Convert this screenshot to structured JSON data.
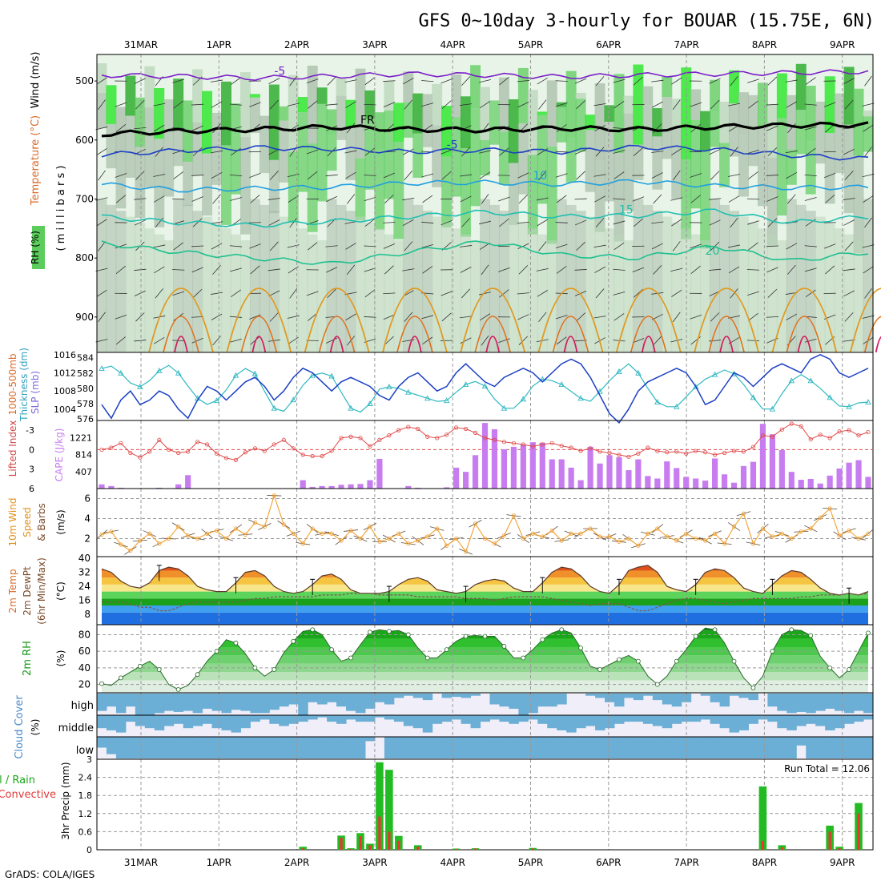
{
  "header": {
    "title": "GFS 0~10day 3-hourly for BOUAR (15.75E, 6N)",
    "footer": "GrADS: COLA/IGES"
  },
  "colors": {
    "rh_light": "#e8f4e8",
    "rh_mid": "#b9d6b9",
    "rh_gray": "#a8bca8",
    "rh_green": "#5ccc5c",
    "rh_bright": "#19e619",
    "rh_dark": "#1aa61a",
    "temp_purple": "#7a1fc8",
    "temp_blue": "#1f4fd0",
    "temp_sky": "#1f9fe0",
    "temp_teal": "#1fbfb0",
    "temp_green": "#1fc090",
    "temp_orange": "#e09a20",
    "temp_red": "#d01f60",
    "freezing": "#000000",
    "slp_line": "#1a3fc4",
    "thickness_line": "#30b8c0",
    "cape_bar": "#c77cf0",
    "li_line": "#e04a4a",
    "wind_line": "#f0a030",
    "cloud_fill": "#6baed6",
    "cloud_bg": "#f0eef8",
    "precip_total": "#22bb22",
    "precip_conv": "#ee3333"
  },
  "time_axis": {
    "labels": [
      "31MAR",
      "1APR",
      "2APR",
      "3APR",
      "4APR",
      "5APR",
      "6APR",
      "7APR",
      "8APR",
      "9APR"
    ],
    "first_label_index": 2,
    "steps_per_day": 8,
    "total_steps": 81
  },
  "panels": {
    "upper": {
      "label_rh": "RH (%)",
      "label_temp": "Temperature (°C)",
      "label_wind": "Wind (m/s)",
      "label_units": "( m i l l i b a r s )",
      "ylim": [
        960,
        455
      ],
      "yticks": [
        500,
        600,
        700,
        800,
        900
      ]
    },
    "slp": {
      "label_thick": "Thickness (dm)",
      "label_thick_top": "1000-500mb",
      "label_slp": "SLP (mb)",
      "left_ticks": [
        "584",
        "582",
        "580",
        "578",
        "576"
      ],
      "right_ticks": [
        "1016",
        "1012",
        "1008",
        "1004"
      ]
    },
    "cape": {
      "label_li": "Lifted Index",
      "label_cape": "CAPE (J/kg)",
      "left_ticks": [
        "-3",
        "0",
        "3",
        "6"
      ],
      "right_ticks": [
        "1221",
        "814",
        "407"
      ]
    },
    "wind10": {
      "label1": "10m Wind",
      "label2": "Speed",
      "label3": "& Barbs",
      "label_units": "(m/s)",
      "ticks": [
        "6",
        "4",
        "2"
      ]
    },
    "temp2m": {
      "label1": "2m Temp",
      "label2": "2m DewPt",
      "label3": "(6hr Min/Max)",
      "label_units": "(°C)",
      "ticks": [
        "40",
        "32",
        "24",
        "16",
        "8"
      ]
    },
    "rh2m": {
      "label": "2m RH",
      "label_units": "(%)",
      "ticks": [
        "80",
        "60",
        "40",
        "20"
      ]
    },
    "cloud": {
      "label": "Cloud Cover",
      "label_units": "(%)",
      "level_labels": [
        "high",
        "middle",
        "low"
      ]
    },
    "precip": {
      "label_total": "Total / Rain",
      "label_conv": "Convective",
      "label_units": "3hr Precip (mm)",
      "ticks": [
        "3",
        "2.4",
        "1.8",
        "1.2",
        "0.6",
        "0"
      ],
      "run_total": "Run Total = 12.06"
    }
  },
  "chart_data": {
    "type": "meteogram",
    "title": "GFS 0~10day 3-hourly for BOUAR (15.75E, 6N)",
    "x_labels": [
      "31MAR",
      "1APR",
      "2APR",
      "3APR",
      "4APR",
      "5APR",
      "6APR",
      "7APR",
      "8APR",
      "9APR"
    ],
    "temp_isotherms": [
      {
        "name": "-5",
        "levels_mb": [
          490,
          492,
          495,
          492,
          488,
          490,
          493,
          490,
          488,
          486,
          484
        ]
      },
      {
        "name": "FR",
        "levels_mb": [
          590,
          585,
          582,
          578,
          582,
          583,
          580,
          582,
          578,
          575,
          574
        ]
      },
      {
        "name": "-5",
        "levels_mb": [
          625,
          618,
          613,
          615,
          620,
          617,
          620,
          612,
          616,
          626,
          632
        ]
      },
      {
        "name": "10",
        "levels_mb": [
          675,
          685,
          682,
          680,
          673,
          672,
          675,
          670,
          678,
          681,
          680
        ]
      },
      {
        "name": "15",
        "levels_mb": [
          730,
          740,
          745,
          738,
          730,
          722,
          730,
          728,
          720,
          740,
          730
        ]
      },
      {
        "name": "20",
        "levels_mb": [
          775,
          790,
          800,
          810,
          790,
          772,
          795,
          800,
          780,
          805,
          790
        ]
      }
    ],
    "slp_mb": [
      1005,
      1002,
      1006,
      1008,
      1005,
      1006,
      1008,
      1007,
      1004,
      1002,
      1006,
      1009,
      1008,
      1006,
      1008,
      1010,
      1011,
      1009,
      1006,
      1008,
      1011,
      1013,
      1012,
      1010,
      1008,
      1010,
      1011,
      1010,
      1009,
      1007,
      1006,
      1009,
      1011,
      1012,
      1010,
      1008,
      1009,
      1012,
      1014,
      1012,
      1010,
      1009,
      1011,
      1012,
      1013,
      1012,
      1010,
      1012,
      1014,
      1015,
      1014,
      1011,
      1007,
      1003,
      1001,
      1004,
      1008,
      1010,
      1011,
      1012,
      1013,
      1012,
      1009,
      1005,
      1006,
      1009,
      1012,
      1011,
      1009,
      1011,
      1013,
      1014,
      1013,
      1012,
      1015,
      1016,
      1015,
      1012,
      1011,
      1012,
      1013
    ],
    "thickness_dm": [
      582.6,
      582.9,
      582.0,
      580.7,
      580.2,
      581.0,
      582.3,
      583.0,
      582.0,
      580.3,
      578.7,
      577.9,
      578.4,
      579.8,
      581.7,
      582.6,
      581.9,
      579.6,
      577.4,
      577.0,
      578.5,
      580.4,
      581.7,
      582.0,
      581.6,
      579.5,
      577.4,
      576.9,
      578.0,
      579.9,
      580.2,
      580.0,
      579.5,
      579.1,
      578.7,
      578.3,
      578.4,
      579.5,
      580.5,
      580.9,
      580.3,
      578.6,
      577.4,
      577.4,
      578.6,
      580.3,
      581.2,
      581.0,
      580.5,
      579.6,
      578.7,
      578.3,
      579.6,
      581.0,
      582.2,
      583.2,
      582.0,
      580.0,
      578.2,
      577.6,
      577.6,
      578.9,
      580.2,
      581.2,
      581.8,
      582.4,
      581.9,
      580.5,
      578.8,
      577.3,
      577.3,
      579.3,
      581.0,
      581.8,
      581.0,
      580.0,
      578.8,
      577.7,
      577.6,
      578.1,
      578.2
    ],
    "lifted_index": [
      0,
      -0.3,
      -1,
      0.5,
      1.2,
      0.3,
      -1.5,
      0,
      0.5,
      0.3,
      -1.2,
      -0.8,
      0.6,
      1.3,
      1.6,
      0.4,
      -0.2,
      0.2,
      -0.8,
      -1.5,
      -0.2,
      0.8,
      1.0,
      1.0,
      0.2,
      -1.8,
      -2.0,
      -1.8,
      -0.5,
      -1.5,
      -2.2,
      -3.0,
      -3.5,
      -3.2,
      -2.0,
      -1.8,
      -2.3,
      -3.4,
      -3.2,
      -2.6,
      -1.8,
      -1.5,
      -1.2,
      -1.0,
      -0.8,
      -0.5,
      -0.8,
      -1.0,
      -0.6,
      -0.3,
      0.2,
      -0.2,
      0.3,
      0.5,
      0.8,
      1.1,
      0.6,
      -0.3,
      0.2,
      0.4,
      0.3,
      0.6,
      0.2,
      0.4,
      0.8,
      0.5,
      0.2,
      0.3,
      -0.4,
      -2.2,
      -2.0,
      -3.1,
      -4.0,
      -3.6,
      -1.6,
      -2.3,
      -1.8,
      -2.8,
      -3.0,
      -2.2,
      -2.7
    ],
    "cape_jkg": [
      100,
      60,
      20,
      0,
      0,
      0,
      20,
      0,
      100,
      320,
      0,
      0,
      0,
      0,
      0,
      0,
      0,
      0,
      0,
      0,
      0,
      200,
      40,
      60,
      60,
      90,
      100,
      110,
      200,
      710,
      0,
      0,
      60,
      20,
      0,
      0,
      30,
      500,
      400,
      800,
      1570,
      1420,
      940,
      1000,
      1050,
      1110,
      1100,
      700,
      700,
      500,
      200,
      1000,
      600,
      800,
      750,
      440,
      700,
      300,
      240,
      650,
      490,
      280,
      240,
      190,
      720,
      340,
      140,
      540,
      640,
      1550,
      1300,
      920,
      400,
      210,
      230,
      120,
      310,
      480,
      620,
      680,
      280
    ],
    "wind10_ms": [
      2.4,
      2.7,
      1.4,
      0.8,
      1.8,
      2.5,
      1.5,
      2.0,
      3.2,
      2.3,
      2.0,
      2.5,
      2.8,
      2.0,
      3.0,
      2.4,
      3.6,
      3.2,
      6.3,
      3.4,
      2.5,
      1.5,
      3.0,
      2.5,
      2.5,
      1.8,
      2.8,
      2.0,
      3.2,
      1.7,
      2.0,
      2.5,
      1.5,
      1.8,
      2.2,
      3.0,
      1.3,
      2.0,
      0.7,
      3.5,
      2.0,
      1.5,
      2.3,
      4.3,
      2.0,
      2.5,
      2.2,
      2.8,
      1.8,
      2.5,
      2.5,
      3.0,
      2.2,
      2.2,
      1.7,
      2.0,
      1.3,
      2.5,
      3.0,
      2.2,
      1.8,
      2.5,
      2.0,
      1.8,
      2.5,
      1.5,
      3.2,
      4.5,
      1.5,
      3.0,
      2.2,
      2.5,
      2.0,
      2.7,
      3.0,
      4.1,
      5.0,
      2.3,
      2.8,
      2.0,
      2.5
    ],
    "temp2m_c": [
      34,
      32,
      27,
      24,
      23,
      26,
      33,
      35,
      34,
      30,
      24,
      22,
      21,
      21,
      26,
      32,
      33,
      30,
      24,
      21,
      20,
      21,
      25,
      30,
      31,
      28,
      22,
      20,
      20,
      20,
      21,
      25,
      28,
      29,
      27,
      22,
      21,
      20,
      21,
      25,
      27,
      28,
      27,
      23,
      21,
      21,
      26,
      32,
      35,
      34,
      30,
      24,
      21,
      20,
      25,
      33,
      35,
      36,
      32,
      24,
      22,
      21,
      25,
      32,
      34,
      33,
      29,
      23,
      21,
      20,
      25,
      30,
      33,
      32,
      28,
      23,
      20,
      19,
      20,
      19,
      21
    ],
    "dewpt2m_c": [
      15,
      15,
      15,
      14,
      12,
      12,
      10,
      10,
      12,
      14,
      15,
      15,
      15,
      15,
      15,
      16,
      17,
      17,
      18,
      18,
      18,
      18,
      18,
      19,
      19,
      19,
      20,
      20,
      20,
      19,
      19,
      19,
      19,
      18,
      18,
      18,
      18,
      18,
      17,
      17,
      17,
      16,
      17,
      18,
      18,
      18,
      18,
      17,
      16,
      15,
      14,
      13,
      14,
      14,
      14,
      12,
      10,
      10,
      12,
      14,
      16,
      17,
      17,
      16,
      15,
      14,
      15,
      16,
      17,
      17,
      17,
      17,
      17,
      18,
      18,
      19,
      19,
      19,
      20,
      19,
      20
    ],
    "rh2m_pct": [
      21,
      19,
      28,
      35,
      42,
      48,
      38,
      20,
      14,
      19,
      32,
      48,
      60,
      74,
      70,
      57,
      40,
      30,
      38,
      58,
      72,
      84,
      86,
      80,
      62,
      48,
      52,
      68,
      83,
      86,
      84,
      85,
      80,
      64,
      52,
      52,
      62,
      72,
      78,
      79,
      78,
      78,
      66,
      52,
      52,
      62,
      74,
      82,
      86,
      82,
      64,
      42,
      38,
      44,
      50,
      55,
      48,
      30,
      20,
      30,
      48,
      62,
      78,
      88,
      86,
      70,
      48,
      28,
      16,
      30,
      60,
      80,
      86,
      85,
      79,
      54,
      40,
      28,
      38,
      60,
      82
    ],
    "cloud_high_pct": [
      80,
      60,
      90,
      60,
      100,
      100,
      90,
      80,
      85,
      80,
      90,
      70,
      80,
      90,
      75,
      80,
      90,
      90,
      75,
      60,
      50,
      100,
      40,
      50,
      40,
      60,
      80,
      90,
      70,
      40,
      50,
      20,
      10,
      20,
      30,
      0,
      20,
      15,
      20,
      10,
      0,
      50,
      60,
      70,
      100,
      90,
      60,
      60,
      50,
      0,
      0,
      10,
      20,
      40,
      60,
      20,
      30,
      10,
      30,
      50,
      60,
      40,
      0,
      10,
      40,
      60,
      10,
      20,
      30,
      0,
      60,
      80,
      90,
      85,
      90,
      80,
      70,
      80,
      90,
      80,
      90
    ],
    "cloud_mid_pct": [
      60,
      70,
      80,
      30,
      50,
      60,
      70,
      50,
      40,
      60,
      50,
      40,
      60,
      70,
      80,
      60,
      30,
      20,
      40,
      50,
      40,
      30,
      20,
      10,
      30,
      40,
      20,
      30,
      30,
      10,
      20,
      30,
      50,
      60,
      80,
      40,
      30,
      20,
      40,
      60,
      30,
      20,
      30,
      40,
      30,
      20,
      40,
      60,
      70,
      80,
      60,
      50,
      70,
      60,
      40,
      30,
      30,
      40,
      50,
      60,
      40,
      30,
      30,
      20,
      40,
      60,
      80,
      70,
      40,
      20,
      30,
      60,
      70,
      50,
      40,
      50,
      70,
      60,
      40,
      30,
      20
    ],
    "cloud_low_pct": [
      50,
      80,
      100,
      100,
      100,
      100,
      100,
      100,
      100,
      100,
      100,
      100,
      100,
      100,
      100,
      100,
      100,
      100,
      100,
      100,
      100,
      100,
      100,
      100,
      100,
      100,
      100,
      100,
      20,
      0,
      100,
      100,
      100,
      100,
      100,
      100,
      100,
      100,
      100,
      100,
      100,
      100,
      100,
      100,
      100,
      100,
      100,
      100,
      100,
      100,
      100,
      100,
      100,
      100,
      100,
      100,
      100,
      100,
      100,
      100,
      100,
      100,
      100,
      100,
      100,
      100,
      100,
      100,
      100,
      100,
      100,
      100,
      100,
      40,
      100,
      100,
      100,
      100,
      100,
      100,
      100
    ],
    "precip_total_mm": [
      0,
      0,
      0,
      0,
      0,
      0,
      0,
      0,
      0,
      0,
      0,
      0,
      0,
      0,
      0,
      0,
      0,
      0,
      0,
      0,
      0,
      0.1,
      0,
      0,
      0,
      0.47,
      0.05,
      0.55,
      0.2,
      2.9,
      2.65,
      0.46,
      0,
      0.15,
      0,
      0,
      0,
      0.04,
      0,
      0.05,
      0,
      0,
      0,
      0,
      0,
      0.06,
      0,
      0,
      0,
      0,
      0,
      0,
      0,
      0,
      0,
      0,
      0,
      0,
      0,
      0,
      0,
      0,
      0,
      0,
      0,
      0,
      0,
      0,
      0,
      2.1,
      0,
      0.15,
      0,
      0,
      0,
      0,
      0.8,
      0.1,
      0,
      1.55,
      0
    ],
    "precip_conv_mm": [
      0,
      0,
      0,
      0,
      0,
      0,
      0,
      0,
      0,
      0,
      0,
      0,
      0,
      0,
      0,
      0,
      0,
      0,
      0,
      0,
      0,
      0.05,
      0,
      0,
      0,
      0.4,
      0.03,
      0.45,
      0.15,
      1.1,
      0.6,
      0.3,
      0,
      0.1,
      0,
      0,
      0,
      0.03,
      0,
      0.04,
      0,
      0,
      0,
      0,
      0,
      0.04,
      0,
      0,
      0,
      0,
      0,
      0,
      0,
      0,
      0,
      0,
      0,
      0,
      0,
      0,
      0,
      0,
      0,
      0,
      0,
      0,
      0,
      0,
      0.05,
      0.3,
      0,
      0.08,
      0,
      0,
      0,
      0,
      0.6,
      0.05,
      0,
      1.2,
      0
    ]
  }
}
